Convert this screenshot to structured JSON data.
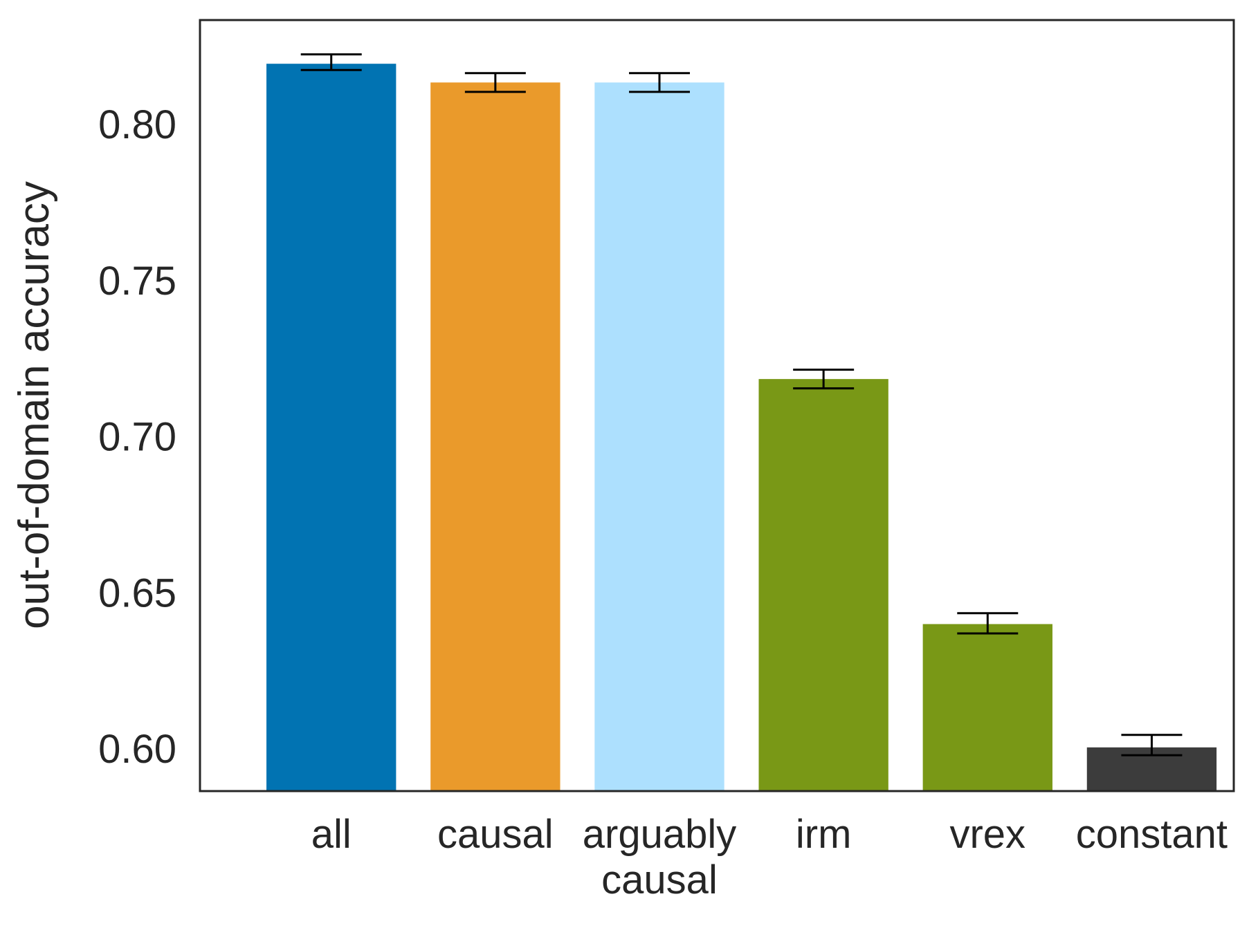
{
  "chart_data": {
    "type": "bar",
    "ylabel": "out-of-domain accuracy",
    "xlabel": "",
    "ylim": [
      0.5865,
      0.8335
    ],
    "yticks": [
      "0.60",
      "0.65",
      "0.70",
      "0.75",
      "0.80"
    ],
    "grid": false,
    "categories": [
      [
        "all"
      ],
      [
        "causal"
      ],
      [
        "arguably",
        "causal"
      ],
      [
        "irm"
      ],
      [
        "vrex"
      ],
      [
        "constant"
      ]
    ],
    "values": [
      0.8195,
      0.8135,
      0.8135,
      0.7185,
      0.64,
      0.6005
    ],
    "error_low": [
      0.8175,
      0.8105,
      0.8105,
      0.7155,
      0.637,
      0.598
    ],
    "error_high": [
      0.8225,
      0.8165,
      0.8165,
      0.7215,
      0.6435,
      0.6045
    ],
    "colors": [
      "#0173b2",
      "#ea9a2b",
      "#ade0fe",
      "#799816",
      "#799816",
      "#3c3c3c"
    ]
  }
}
